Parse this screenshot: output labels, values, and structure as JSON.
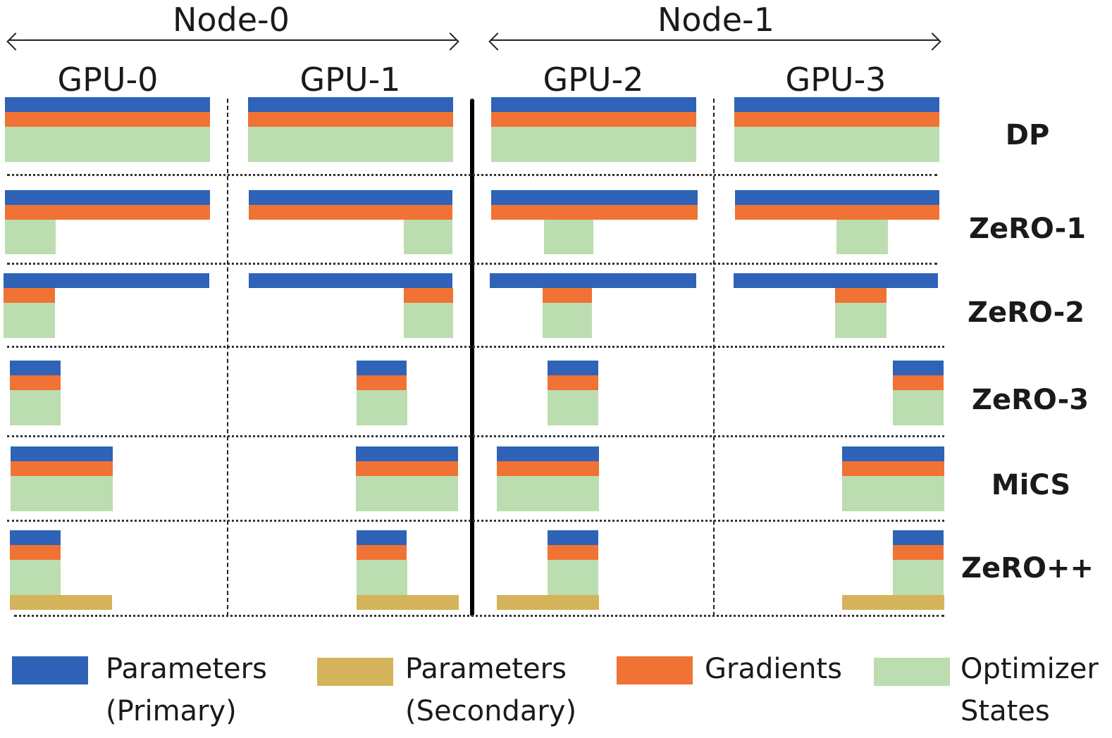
{
  "colors": {
    "parameters_primary": "#2f63b8",
    "parameters_secondary": "#d4b35a",
    "gradients": "#f07234",
    "optimizer_states": "#bcddb0"
  },
  "header": {
    "nodes": [
      {
        "label": "Node-0"
      },
      {
        "label": "Node-1"
      }
    ],
    "gpus": [
      {
        "label": "GPU-0"
      },
      {
        "label": "GPU-1"
      },
      {
        "label": "GPU-2"
      },
      {
        "label": "GPU-3"
      }
    ]
  },
  "rows": [
    {
      "label": "DP"
    },
    {
      "label": "ZeRO-1"
    },
    {
      "label": "ZeRO-2"
    },
    {
      "label": "ZeRO-3"
    },
    {
      "label": "MiCS"
    },
    {
      "label": "ZeRO++"
    }
  ],
  "legend": [
    {
      "line1": "Parameters",
      "line2": "(Primary)",
      "swatch": "parameters-primary"
    },
    {
      "line1": "Parameters",
      "line2": "(Secondary)",
      "swatch": "parameters-secondary"
    },
    {
      "line1": "Gradients",
      "line2": "",
      "swatch": "gradients"
    },
    {
      "line1": "Optimizer",
      "line2": "States",
      "swatch": "optimizer-states"
    }
  ]
}
